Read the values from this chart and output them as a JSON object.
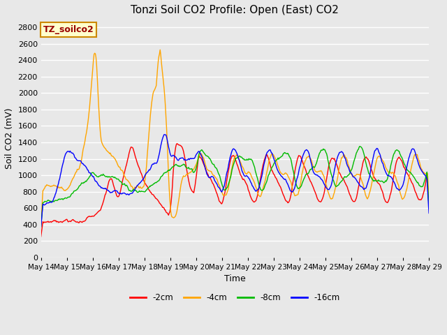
{
  "title": "Tonzi Soil CO2 Profile: Open (East) CO2",
  "xlabel": "Time",
  "ylabel": "Soil CO2 (mV)",
  "ylim": [
    0,
    2900
  ],
  "yticks": [
    0,
    200,
    400,
    600,
    800,
    1000,
    1200,
    1400,
    1600,
    1800,
    2000,
    2200,
    2400,
    2600,
    2800
  ],
  "bg_color": "#e8e8e8",
  "plot_bg": "#e8e8e8",
  "grid_color": "white",
  "label_box": "TZ_soilco2",
  "label_box_bg": "#ffffcc",
  "label_box_edge": "#cc8800",
  "label_box_text": "#990000",
  "series": {
    "neg2cm": {
      "label": "-2cm",
      "color": "#ff0000"
    },
    "neg4cm": {
      "label": "-4cm",
      "color": "#ffa500"
    },
    "neg8cm": {
      "label": "-8cm",
      "color": "#00bb00"
    },
    "neg16cm": {
      "label": "-16cm",
      "color": "#0000ff"
    }
  },
  "x_start": 0,
  "x_end": 15,
  "xtick_labels": [
    "May 14",
    "May 15",
    "May 16",
    "May 17",
    "May 18",
    "May 19",
    "May 20",
    "May 21",
    "May 22",
    "May 23",
    "May 24",
    "May 25",
    "May 26",
    "May 27",
    "May 28",
    "May 29"
  ],
  "xtick_positions": [
    0,
    1,
    2,
    3,
    4,
    5,
    6,
    7,
    8,
    9,
    10,
    11,
    12,
    13,
    14,
    15
  ]
}
